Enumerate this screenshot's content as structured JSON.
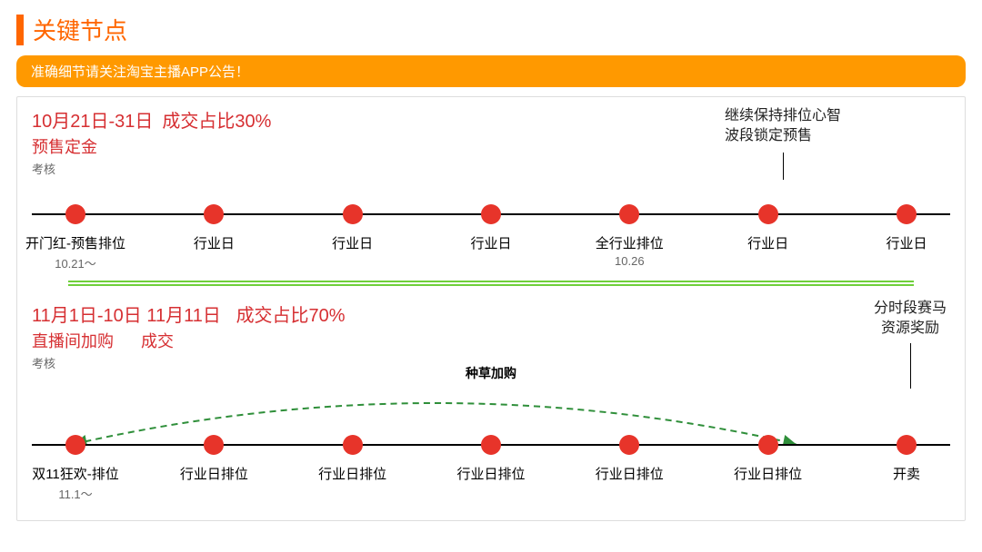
{
  "colors": {
    "accent_orange": "#ff6600",
    "banner_bg": "#ff9900",
    "heading_red": "#d62f32",
    "node_red": "#e7342a",
    "rule_green": "#6fcf3b",
    "dash_green": "#2f8f3a",
    "text_black": "#000000",
    "text_gray": "#666666",
    "border_gray": "#dddddd"
  },
  "header": {
    "title": "关键节点"
  },
  "banner": {
    "text": "准确细节请关注淘宝主播APP公告！"
  },
  "period1": {
    "date_range": "10月21日-31日",
    "ratio": "成交占比30%",
    "sub_red": "预售定金",
    "sub_gray": "考核",
    "top_note_l1": "继续保持排位心智",
    "top_note_l2": "波段锁定预售",
    "nodes": [
      {
        "label": "开门红-预售排位",
        "sub": "10.21～"
      },
      {
        "label": "行业日",
        "sub": ""
      },
      {
        "label": "行业日",
        "sub": ""
      },
      {
        "label": "行业日",
        "sub": ""
      },
      {
        "label": "全行业排位",
        "sub": "10.26"
      },
      {
        "label": "行业日",
        "sub": ""
      },
      {
        "label": "行业日",
        "sub": ""
      }
    ]
  },
  "period2": {
    "date_range1": "11月1日-10日",
    "date_range2": "11月11日",
    "ratio": "成交占比70%",
    "sub_red1": "直播间加购",
    "sub_red2": "成交",
    "sub_gray": "考核",
    "curve_label": "种草加购",
    "right_note_l1": "分时段赛马",
    "right_note_l2": "资源奖励",
    "nodes": [
      {
        "label": "双11狂欢-排位",
        "sub": "11.1～"
      },
      {
        "label": "行业日排位",
        "sub": ""
      },
      {
        "label": "行业日排位",
        "sub": ""
      },
      {
        "label": "行业日排位",
        "sub": ""
      },
      {
        "label": "行业日排位",
        "sub": ""
      },
      {
        "label": "行业日排位",
        "sub": ""
      },
      {
        "label": "开卖",
        "sub": ""
      }
    ]
  }
}
